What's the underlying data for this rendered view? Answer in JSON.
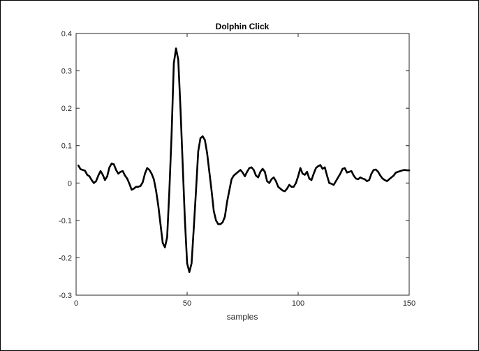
{
  "chart_data": {
    "type": "line",
    "title": "Dolphin Click",
    "xlabel": "samples",
    "ylabel": "",
    "xlim": [
      0,
      150
    ],
    "ylim": [
      -0.3,
      0.4
    ],
    "xticks": [
      0,
      50,
      100,
      150
    ],
    "xtick_labels": [
      "0",
      "50",
      "100",
      "150"
    ],
    "yticks": [
      -0.3,
      -0.2,
      -0.1,
      0,
      0.1,
      0.2,
      0.3,
      0.4
    ],
    "ytick_labels": [
      "-0.3",
      "-0.2",
      "-0.1",
      "0",
      "0.1",
      "0.2",
      "0.3",
      "0.4"
    ],
    "grid": false,
    "series": [
      {
        "color": "#000000",
        "x": [
          1,
          2,
          3,
          4,
          5,
          6,
          7,
          8,
          9,
          10,
          11,
          12,
          13,
          14,
          15,
          16,
          17,
          18,
          19,
          20,
          21,
          22,
          23,
          24,
          25,
          26,
          27,
          28,
          29,
          30,
          31,
          32,
          33,
          34,
          35,
          36,
          37,
          38,
          39,
          40,
          41,
          42,
          43,
          44,
          45,
          46,
          47,
          48,
          49,
          50,
          51,
          52,
          53,
          54,
          55,
          56,
          57,
          58,
          59,
          60,
          61,
          62,
          63,
          64,
          65,
          66,
          67,
          68,
          69,
          70,
          71,
          72,
          73,
          74,
          75,
          76,
          77,
          78,
          79,
          80,
          81,
          82,
          83,
          84,
          85,
          86,
          87,
          88,
          89,
          90,
          91,
          92,
          93,
          94,
          95,
          96,
          97,
          98,
          99,
          100,
          101,
          102,
          103,
          104,
          105,
          106,
          107,
          108,
          109,
          110,
          111,
          112,
          113,
          114,
          115,
          116,
          117,
          118,
          119,
          120,
          121,
          122,
          123,
          124,
          125,
          126,
          127,
          128,
          129,
          130,
          131,
          132,
          133,
          134,
          135,
          136,
          137,
          138,
          139,
          140,
          141,
          142,
          143,
          144,
          145,
          146,
          147,
          148,
          149,
          150
        ],
        "y": [
          0.047,
          0.037,
          0.035,
          0.033,
          0.022,
          0.018,
          0.008,
          0.0,
          0.005,
          0.02,
          0.032,
          0.022,
          0.008,
          0.018,
          0.042,
          0.052,
          0.05,
          0.035,
          0.025,
          0.03,
          0.032,
          0.02,
          0.012,
          -0.002,
          -0.018,
          -0.015,
          -0.01,
          -0.01,
          -0.008,
          0.002,
          0.025,
          0.04,
          0.035,
          0.025,
          0.01,
          -0.02,
          -0.06,
          -0.11,
          -0.16,
          -0.172,
          -0.145,
          -0.02,
          0.13,
          0.32,
          0.36,
          0.33,
          0.2,
          0.05,
          -0.1,
          -0.215,
          -0.238,
          -0.215,
          -0.12,
          -0.02,
          0.085,
          0.12,
          0.125,
          0.115,
          0.08,
          0.03,
          -0.02,
          -0.075,
          -0.1,
          -0.11,
          -0.11,
          -0.105,
          -0.09,
          -0.05,
          -0.02,
          0.01,
          0.02,
          0.025,
          0.03,
          0.035,
          0.028,
          0.018,
          0.03,
          0.04,
          0.042,
          0.035,
          0.02,
          0.015,
          0.03,
          0.038,
          0.03,
          0.005,
          0.0,
          0.01,
          0.015,
          0.005,
          -0.01,
          -0.015,
          -0.02,
          -0.022,
          -0.015,
          -0.005,
          -0.01,
          -0.01,
          0.0,
          0.018,
          0.04,
          0.025,
          0.022,
          0.03,
          0.012,
          0.008,
          0.025,
          0.04,
          0.045,
          0.048,
          0.038,
          0.042,
          0.02,
          0.0,
          -0.002,
          -0.005,
          0.005,
          0.015,
          0.025,
          0.038,
          0.04,
          0.028,
          0.03,
          0.032,
          0.02,
          0.012,
          0.01,
          0.015,
          0.012,
          0.01,
          0.005,
          0.008,
          0.025,
          0.035,
          0.036,
          0.03,
          0.02,
          0.012,
          0.008,
          0.005,
          0.01,
          0.015,
          0.02,
          0.028,
          0.03,
          0.032,
          0.034,
          0.035,
          0.034,
          0.034
        ]
      }
    ]
  }
}
